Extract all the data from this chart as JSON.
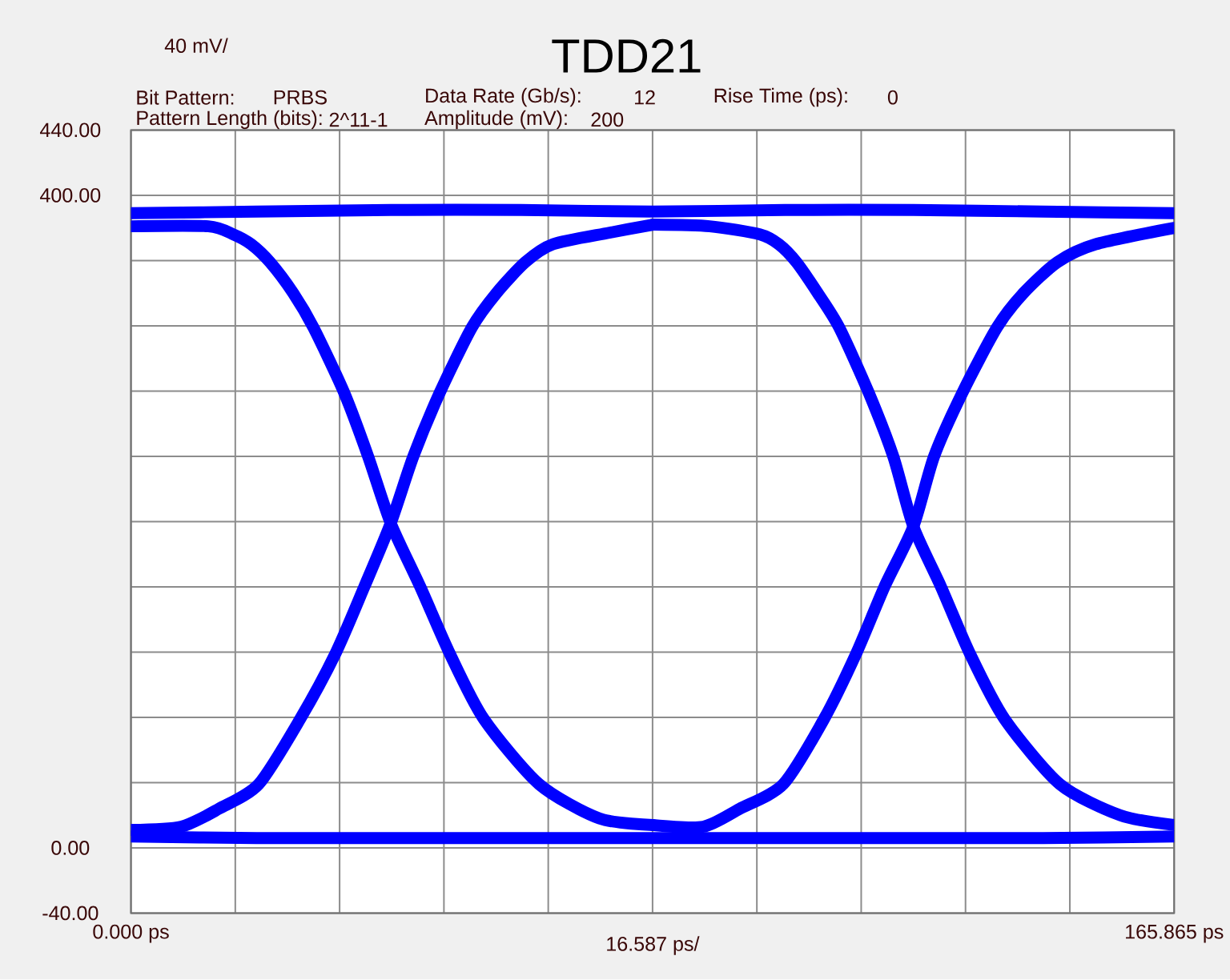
{
  "chart_data": {
    "type": "line",
    "title": "TDD21",
    "annotations": [
      "40 mV/",
      "Bit Pattern:",
      "PRBS",
      "Data Rate (Gb/s):",
      "12",
      "Rise Time (ps):",
      "0",
      "Pattern Length (bits):",
      "2^11-1",
      "Amplitude (mV):",
      "200",
      "16.587 ps/"
    ],
    "xlim": [
      0,
      165.865
    ],
    "xticks": [
      {
        "value": 0,
        "label": "0.000 ps"
      },
      {
        "value": 16.5865,
        "label": null
      },
      {
        "value": 33.173,
        "label": null
      },
      {
        "value": 49.7595,
        "label": null
      },
      {
        "value": 66.346,
        "label": null
      },
      {
        "value": 82.9325,
        "label": null
      },
      {
        "value": 99.519,
        "label": null
      },
      {
        "value": 116.1055,
        "label": null
      },
      {
        "value": 132.692,
        "label": null
      },
      {
        "value": 149.2785,
        "label": null
      },
      {
        "value": 165.865,
        "label": "165.865 ps"
      }
    ],
    "ylim": [
      -40,
      440
    ],
    "yticks": [
      {
        "value": -40,
        "label": "-40.00"
      },
      {
        "value": 0,
        "label": "0.00"
      },
      {
        "value": 40,
        "label": null
      },
      {
        "value": 80,
        "label": null
      },
      {
        "value": 120,
        "label": null
      },
      {
        "value": 160,
        "label": null
      },
      {
        "value": 200,
        "label": null
      },
      {
        "value": 240,
        "label": null
      },
      {
        "value": 280,
        "label": null
      },
      {
        "value": 320,
        "label": null
      },
      {
        "value": 360,
        "label": null
      },
      {
        "value": 400,
        "label": "400.00"
      },
      {
        "value": 440,
        "label": "440.00"
      }
    ],
    "grid": true,
    "series": [
      {
        "color": "#0000ff",
        "x": [
          0,
          20,
          41.3,
          62,
          83,
          104,
          124.4,
          145,
          165.865
        ],
        "values": [
          389,
          390,
          391,
          391,
          390,
          391,
          391,
          390,
          389
        ]
      },
      {
        "color": "#0000ff",
        "x": [
          0,
          20,
          41.3,
          62,
          83,
          104,
          124.4,
          145,
          165.865
        ],
        "values": [
          7,
          6,
          6,
          6,
          6,
          6,
          6,
          6,
          7
        ]
      },
      {
        "color": "#0000ff",
        "x": [
          0,
          12.3,
          16.3,
          19.1,
          22.1,
          25.8,
          29,
          33.9,
          37.7,
          41.3,
          46,
          50.7,
          56.1,
          64.9,
          74.5,
          83
        ],
        "values": [
          381,
          381,
          376,
          370,
          359,
          340,
          319,
          279,
          240,
          199,
          160,
          119,
          79,
          39,
          18,
          14
        ]
      },
      {
        "color": "#0000ff",
        "x": [
          0,
          8,
          14,
          20.3,
          26.9,
          32.5,
          37.1,
          41.3,
          44.9,
          49.1,
          54.2,
          58.1,
          62.7,
          67.1,
          76,
          83
        ],
        "values": [
          11,
          13,
          24,
          39,
          79,
          119,
          160,
          199,
          240,
          279,
          319,
          340,
          359,
          370,
          377,
          382
        ]
      },
      {
        "color": "#0000ff",
        "x": [
          83,
          92,
          100,
          103,
          105.8,
          109.2,
          112.6,
          117.3,
          121.2,
          124.4,
          128.8,
          133.4,
          138.9,
          147.7,
          157.3,
          165.865
        ],
        "values": [
          382,
          381,
          376,
          370,
          359,
          340,
          319,
          279,
          240,
          197,
          160,
          119,
          79,
          39,
          20,
          14
        ]
      },
      {
        "color": "#0000ff",
        "x": [
          83,
          91,
          96.8,
          103.7,
          110.2,
          115.3,
          119.8,
          124.4,
          127.7,
          132.2,
          137.7,
          141.9,
          147.3,
          153.4,
          165.865
        ],
        "values": [
          14,
          13,
          24,
          39,
          79,
          119,
          160,
          197,
          240,
          279,
          319,
          340,
          359,
          370,
          380
        ]
      }
    ]
  }
}
